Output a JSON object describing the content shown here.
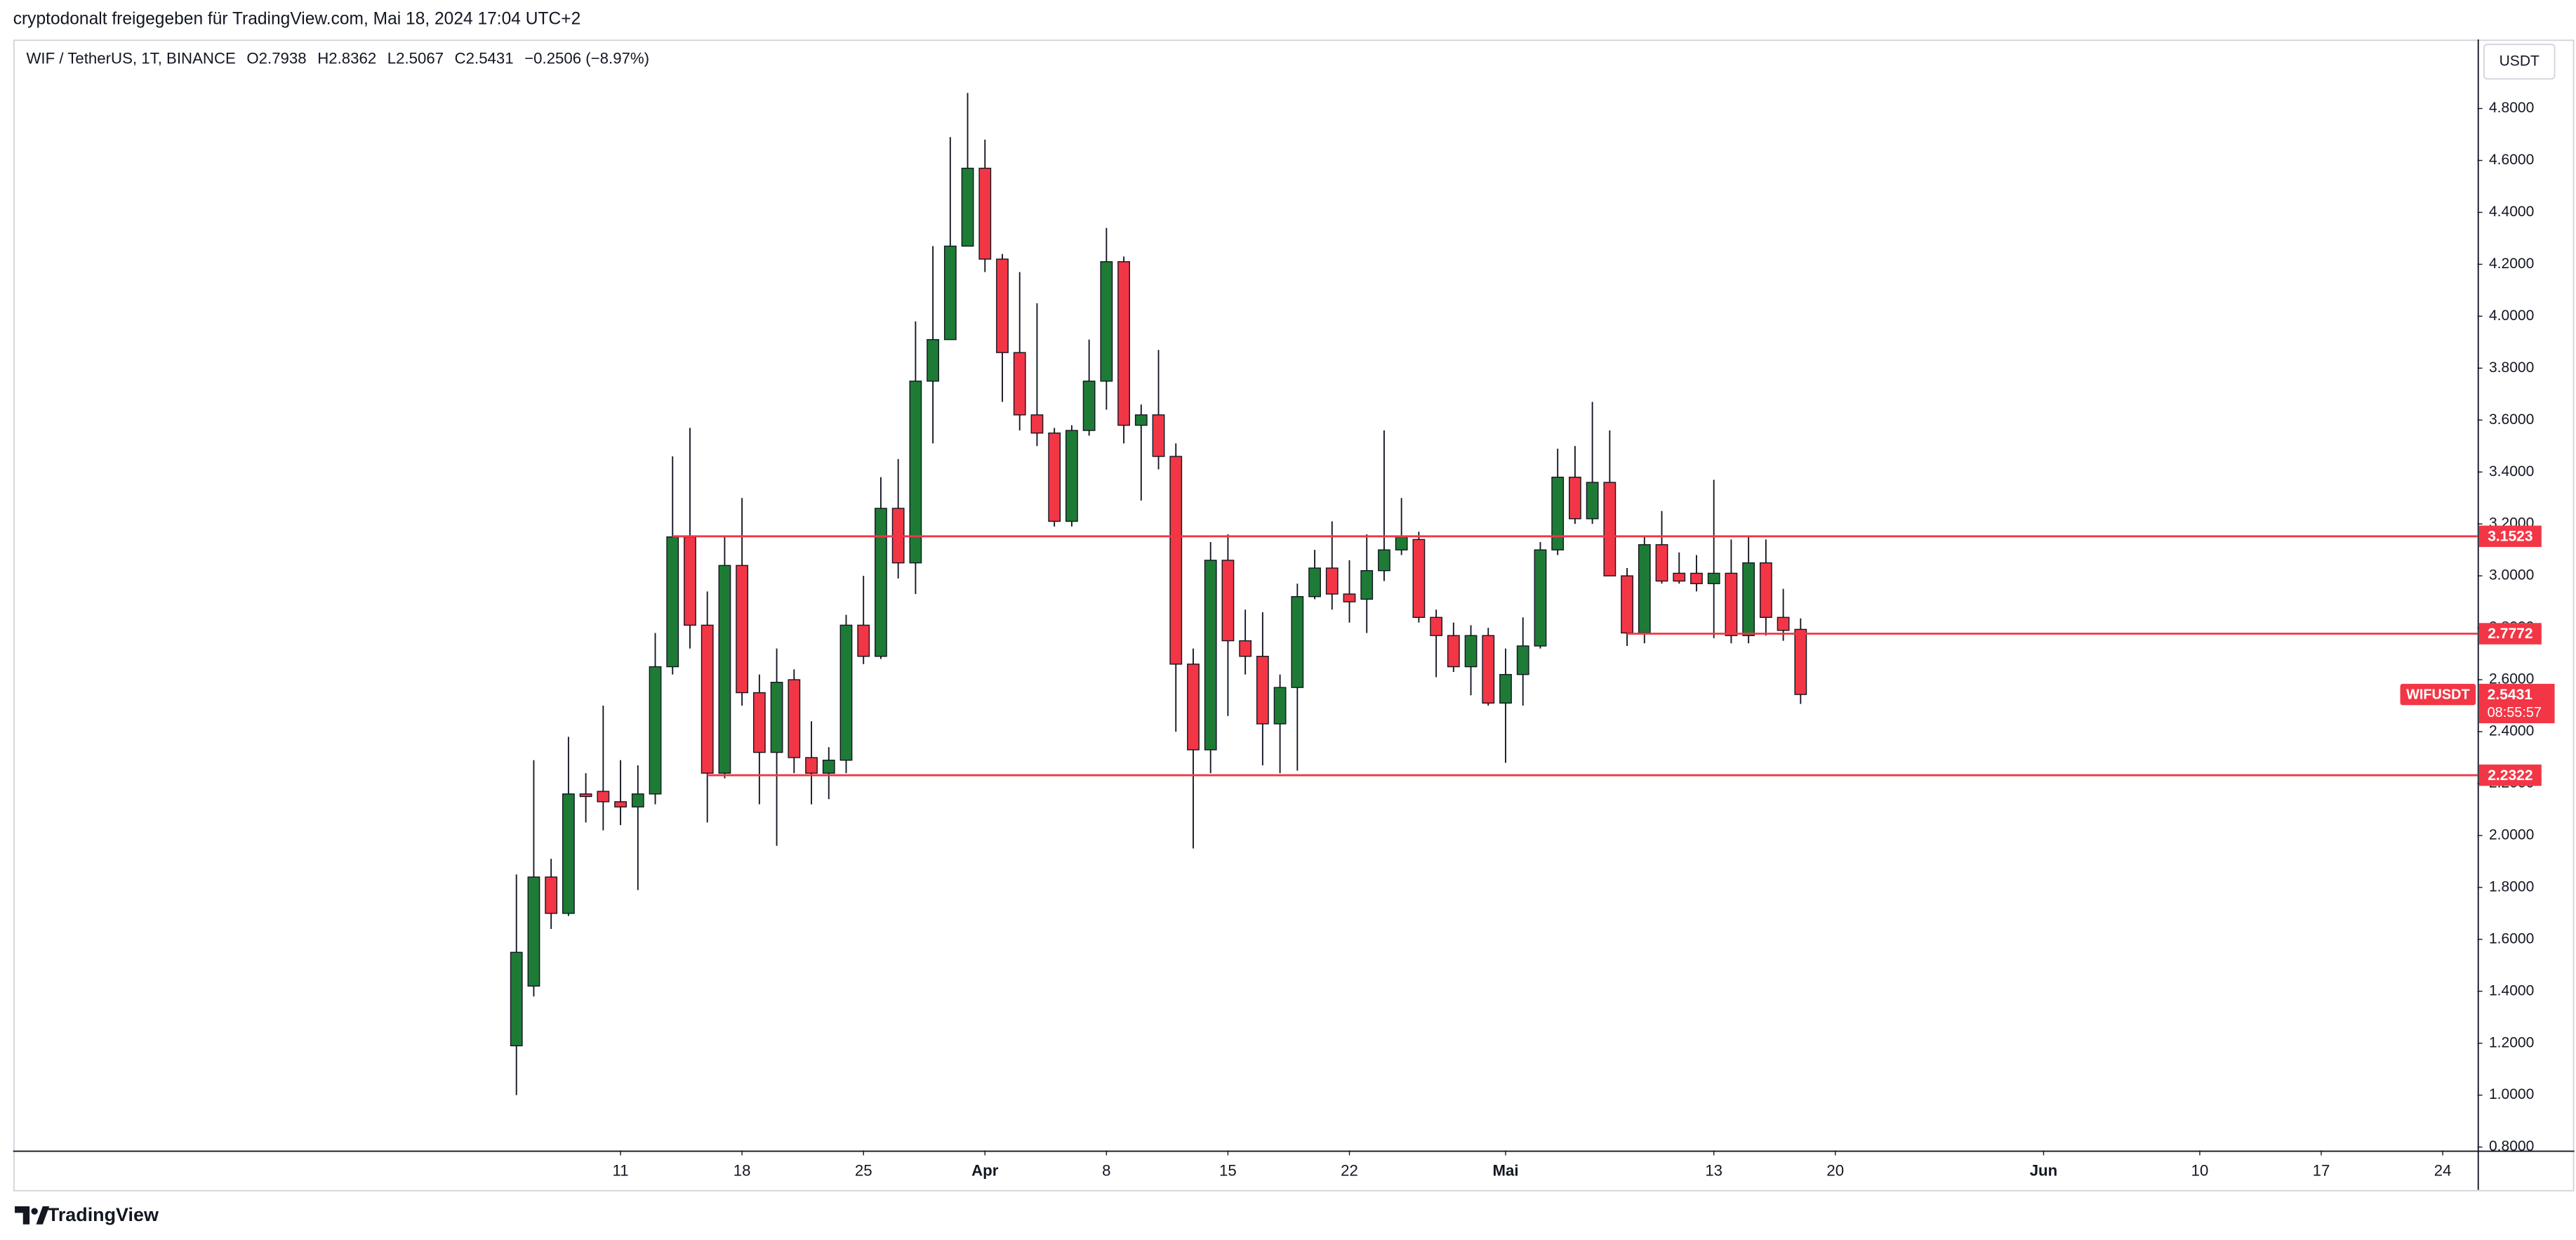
{
  "header": {
    "shared_by": "cryptodonalt freigegeben für TradingView.com, Mai 18, 2024 17:04 UTC+2"
  },
  "footer": {
    "brand": "TradingView"
  },
  "chart_data": {
    "type": "candlestick",
    "legend": {
      "symbol": "WIF / TetherUS, 1T, BINANCE",
      "open": "O2.7938",
      "high": "H2.8362",
      "low": "L2.5067",
      "close": "C2.5431",
      "change": "−0.2506 (−8.97%)"
    },
    "currency": "USDT",
    "ticker": "WIFUSDT",
    "countdown": "08:55:57",
    "up_color": "#1e7b36",
    "down_color": "#f23645",
    "level_color": "#f23645",
    "grid": false,
    "x": [
      "2024-03-05",
      "2024-03-06",
      "2024-03-07",
      "2024-03-08",
      "2024-03-09",
      "2024-03-10",
      "2024-03-11",
      "2024-03-12",
      "2024-03-13",
      "2024-03-14",
      "2024-03-15",
      "2024-03-16",
      "2024-03-17",
      "2024-03-18",
      "2024-03-19",
      "2024-03-20",
      "2024-03-21",
      "2024-03-22",
      "2024-03-23",
      "2024-03-24",
      "2024-03-25",
      "2024-03-26",
      "2024-03-27",
      "2024-03-28",
      "2024-03-29",
      "2024-03-30",
      "2024-03-31",
      "2024-04-01",
      "2024-04-02",
      "2024-04-03",
      "2024-04-04",
      "2024-04-05",
      "2024-04-06",
      "2024-04-07",
      "2024-04-08",
      "2024-04-09",
      "2024-04-10",
      "2024-04-11",
      "2024-04-12",
      "2024-04-13",
      "2024-04-14",
      "2024-04-15",
      "2024-04-16",
      "2024-04-17",
      "2024-04-18",
      "2024-04-19",
      "2024-04-20",
      "2024-04-21",
      "2024-04-22",
      "2024-04-23",
      "2024-04-24",
      "2024-04-25",
      "2024-04-26",
      "2024-04-27",
      "2024-04-28",
      "2024-04-29",
      "2024-04-30",
      "2024-05-01",
      "2024-05-02",
      "2024-05-03",
      "2024-05-04",
      "2024-05-05",
      "2024-05-06",
      "2024-05-07",
      "2024-05-08",
      "2024-05-09",
      "2024-05-10",
      "2024-05-11",
      "2024-05-12",
      "2024-05-13",
      "2024-05-14",
      "2024-05-15",
      "2024-05-16",
      "2024-05-17",
      "2024-05-18"
    ],
    "open": [
      1.19,
      1.42,
      1.84,
      1.7,
      2.16,
      2.17,
      2.13,
      2.11,
      2.16,
      2.65,
      3.15,
      2.81,
      2.24,
      3.04,
      2.55,
      2.32,
      2.6,
      2.3,
      2.24,
      2.29,
      2.81,
      2.69,
      3.26,
      3.05,
      3.75,
      3.91,
      4.27,
      4.57,
      4.22,
      3.86,
      3.62,
      3.55,
      3.21,
      3.56,
      3.75,
      4.21,
      3.58,
      3.62,
      3.46,
      2.66,
      2.33,
      3.06,
      2.75,
      2.69,
      2.43,
      2.57,
      2.92,
      3.03,
      2.93,
      2.91,
      3.02,
      3.1,
      3.14,
      2.84,
      2.77,
      2.65,
      2.77,
      2.51,
      2.62,
      2.73,
      3.1,
      3.38,
      3.22,
      3.36,
      3.0,
      2.78,
      3.12,
      3.01,
      3.01,
      2.97,
      3.01,
      2.77,
      3.05,
      2.84,
      2.7938
    ],
    "high": [
      1.85,
      2.29,
      1.91,
      2.38,
      2.24,
      2.5,
      2.29,
      2.27,
      2.78,
      3.46,
      3.57,
      2.94,
      3.15,
      3.3,
      2.62,
      2.72,
      2.64,
      2.44,
      2.34,
      2.85,
      3.0,
      3.38,
      3.45,
      3.98,
      4.27,
      4.69,
      4.86,
      4.68,
      4.24,
      4.17,
      4.05,
      3.57,
      3.58,
      3.91,
      4.34,
      4.23,
      3.66,
      3.87,
      3.51,
      2.72,
      3.13,
      3.16,
      2.87,
      2.86,
      2.62,
      2.97,
      3.1,
      3.21,
      3.06,
      3.16,
      3.56,
      3.3,
      3.17,
      2.87,
      2.82,
      2.81,
      2.8,
      2.72,
      2.84,
      3.13,
      3.49,
      3.5,
      3.67,
      3.56,
      3.03,
      3.15,
      3.25,
      3.09,
      3.08,
      3.37,
      3.14,
      3.15,
      3.14,
      2.95,
      2.8362
    ],
    "low": [
      1.0,
      1.38,
      1.64,
      1.69,
      2.05,
      2.02,
      2.04,
      1.79,
      2.12,
      2.62,
      2.72,
      2.05,
      2.22,
      2.5,
      2.12,
      1.96,
      2.24,
      2.12,
      2.14,
      2.24,
      2.66,
      2.68,
      2.99,
      2.93,
      3.51,
      3.91,
      4.27,
      4.17,
      3.67,
      3.56,
      3.5,
      3.19,
      3.19,
      3.54,
      3.64,
      3.51,
      3.29,
      3.41,
      2.4,
      1.95,
      2.24,
      2.46,
      2.62,
      2.27,
      2.24,
      2.25,
      2.91,
      2.87,
      2.82,
      2.78,
      2.98,
      3.08,
      2.82,
      2.61,
      2.63,
      2.54,
      2.5,
      2.28,
      2.5,
      2.72,
      3.08,
      3.2,
      3.2,
      3.0,
      2.73,
      2.74,
      2.97,
      2.97,
      2.94,
      2.76,
      2.74,
      2.74,
      2.77,
      2.75,
      2.5067
    ],
    "close": [
      1.55,
      1.84,
      1.7,
      2.16,
      2.15,
      2.13,
      2.11,
      2.16,
      2.65,
      3.15,
      2.81,
      2.24,
      3.04,
      2.55,
      2.32,
      2.59,
      2.3,
      2.24,
      2.29,
      2.81,
      2.69,
      3.26,
      3.05,
      3.75,
      3.91,
      4.27,
      4.57,
      4.22,
      3.86,
      3.62,
      3.55,
      3.21,
      3.56,
      3.75,
      4.21,
      3.58,
      3.62,
      3.46,
      2.66,
      2.33,
      3.06,
      2.75,
      2.69,
      2.43,
      2.57,
      2.92,
      3.03,
      2.93,
      2.9,
      3.02,
      3.1,
      3.15,
      2.84,
      2.77,
      2.65,
      2.77,
      2.51,
      2.62,
      2.73,
      3.1,
      3.38,
      3.22,
      3.36,
      3.0,
      2.78,
      3.12,
      2.98,
      2.98,
      2.97,
      3.01,
      2.77,
      3.05,
      2.84,
      2.79,
      2.5431
    ],
    "levels": [
      {
        "value": 3.1523,
        "start": "2024-03-14"
      },
      {
        "value": 2.7772,
        "start": "2024-05-08"
      },
      {
        "value": 2.2322,
        "start": "2024-03-16"
      }
    ],
    "xlim": [
      "2024-02-05",
      "2024-06-26"
    ],
    "xticks": [
      {
        "value": "2024-03-11",
        "label": "11"
      },
      {
        "value": "2024-03-18",
        "label": "18"
      },
      {
        "value": "2024-03-25",
        "label": "25"
      },
      {
        "value": "2024-04-01",
        "label": "Apr"
      },
      {
        "value": "2024-04-08",
        "label": "8"
      },
      {
        "value": "2024-04-15",
        "label": "15"
      },
      {
        "value": "2024-04-22",
        "label": "22"
      },
      {
        "value": "2024-05-01",
        "label": "Mai"
      },
      {
        "value": "2024-05-13",
        "label": "13"
      },
      {
        "value": "2024-05-20",
        "label": "20"
      },
      {
        "value": "2024-06-01",
        "label": "Jun"
      },
      {
        "value": "2024-06-10",
        "label": "10"
      },
      {
        "value": "2024-06-17",
        "label": "17"
      },
      {
        "value": "2024-06-24",
        "label": "24"
      }
    ],
    "ylim": [
      0.787,
      5.066
    ],
    "yticks": [
      {
        "value": 0.8,
        "label": "0.8000"
      },
      {
        "value": 1.0,
        "label": "1.0000"
      },
      {
        "value": 1.2,
        "label": "1.2000"
      },
      {
        "value": 1.4,
        "label": "1.4000"
      },
      {
        "value": 1.6,
        "label": "1.6000"
      },
      {
        "value": 1.8,
        "label": "1.8000"
      },
      {
        "value": 2.0,
        "label": "2.0000"
      },
      {
        "value": 2.2,
        "label": "2.2000"
      },
      {
        "value": 2.4,
        "label": "2.4000"
      },
      {
        "value": 2.6,
        "label": "2.6000"
      },
      {
        "value": 2.8,
        "label": "2.8000"
      },
      {
        "value": 3.0,
        "label": "3.0000"
      },
      {
        "value": 3.2,
        "label": "3.2000"
      },
      {
        "value": 3.4,
        "label": "3.4000"
      },
      {
        "value": 3.6,
        "label": "3.6000"
      },
      {
        "value": 3.8,
        "label": "3.8000"
      },
      {
        "value": 4.0,
        "label": "4.0000"
      },
      {
        "value": 4.2,
        "label": "4.2000"
      },
      {
        "value": 4.4,
        "label": "4.4000"
      },
      {
        "value": 4.6,
        "label": "4.6000"
      },
      {
        "value": 4.8,
        "label": "4.8000"
      }
    ]
  }
}
